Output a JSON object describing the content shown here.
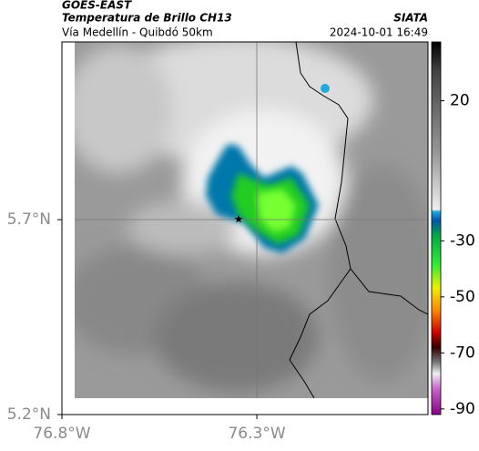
{
  "header": {
    "satellite": "GOES-EAST",
    "product": "Temperatura de Brillo CH13",
    "location": "Vía Medellín - Quibdó 50km",
    "source": "SIATA",
    "datetime": "2024-10-01 16:49"
  },
  "map": {
    "xlim": [
      -76.8,
      -75.861
    ],
    "ylim": [
      5.2,
      6.156
    ],
    "xticks": [
      {
        "value": -76.8,
        "label": "76.8°W"
      },
      {
        "value": -76.3,
        "label": "76.3°W"
      }
    ],
    "yticks": [
      {
        "value": 5.7,
        "label": "5.7°N"
      },
      {
        "value": 5.2,
        "label": "5.2°N"
      }
    ]
  },
  "colorbar": {
    "lim": [
      41,
      -92
    ],
    "ticks": [
      20,
      -30,
      -50,
      -70,
      -90
    ]
  }
}
